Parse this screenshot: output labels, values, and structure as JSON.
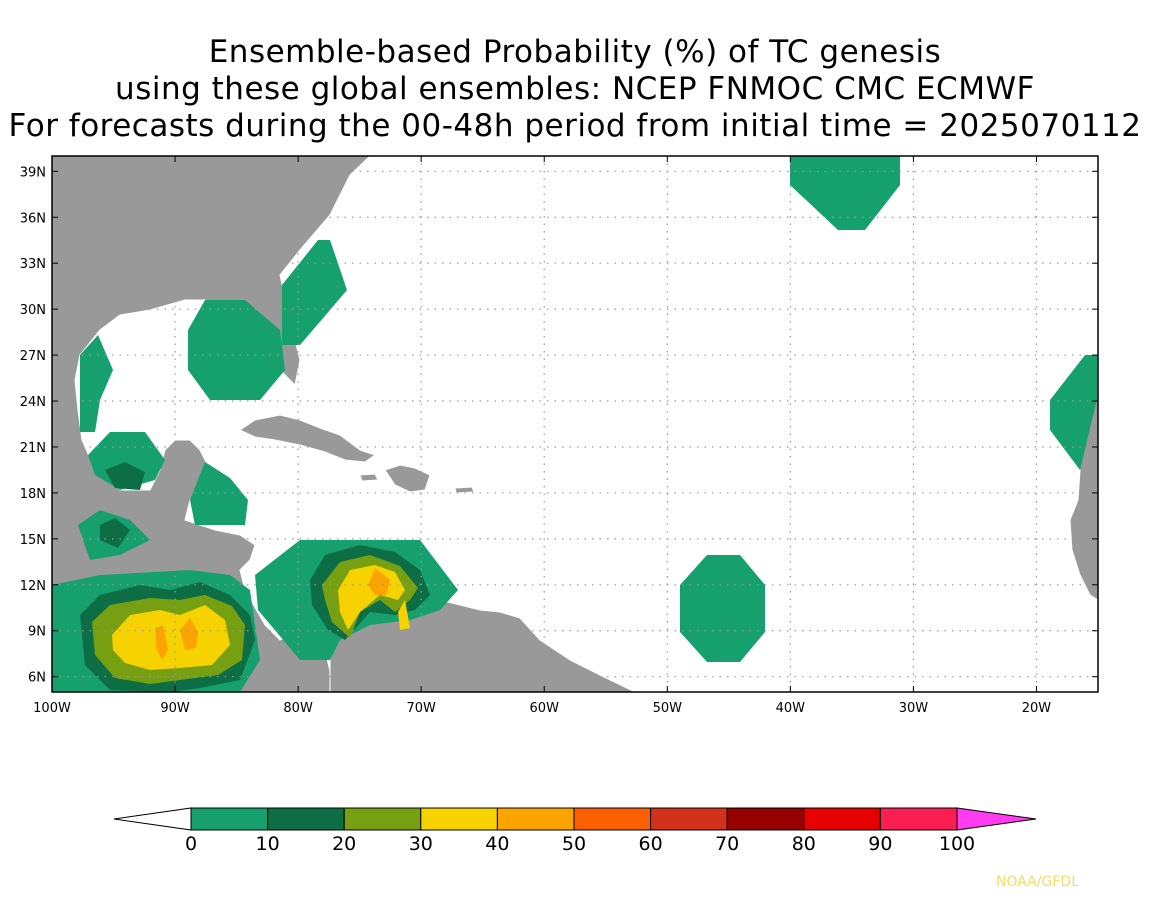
{
  "title": {
    "line1": "Ensemble-based Probability (%) of TC genesis",
    "line2": "using these global ensembles:   NCEP FNMOC CMC ECMWF",
    "line3": "For forecasts during the 00-48h period from initial time = 2025070112"
  },
  "map": {
    "lon_range": [
      -100,
      -15
    ],
    "lat_range": [
      5,
      40
    ],
    "lat_labels": [
      "39N",
      "36N",
      "33N",
      "30N",
      "27N",
      "24N",
      "21N",
      "18N",
      "15N",
      "12N",
      "9N",
      "6N"
    ],
    "lat_values": [
      39,
      36,
      33,
      30,
      27,
      24,
      21,
      18,
      15,
      12,
      9,
      6
    ],
    "lon_labels": [
      "100W",
      "90W",
      "80W",
      "70W",
      "60W",
      "50W",
      "40W",
      "30W",
      "20W"
    ],
    "lon_values": [
      -100,
      -90,
      -80,
      -70,
      -60,
      -50,
      -40,
      -30,
      -20
    ],
    "land_color": "#999999",
    "ocean_color": "#ffffff"
  },
  "colorbar": {
    "labels": [
      "0",
      "10",
      "20",
      "30",
      "40",
      "50",
      "60",
      "70",
      "80",
      "90",
      "100"
    ],
    "colors": [
      "#16a06e",
      "#0d6e45",
      "#76a012",
      "#f5d200",
      "#fba400",
      "#fb5f00",
      "#d13219",
      "#960000",
      "#e60000",
      "#fb1e50",
      "#ff3cf0"
    ],
    "under_color": "#ffffff"
  },
  "credit": "NOAA/GFDL"
}
